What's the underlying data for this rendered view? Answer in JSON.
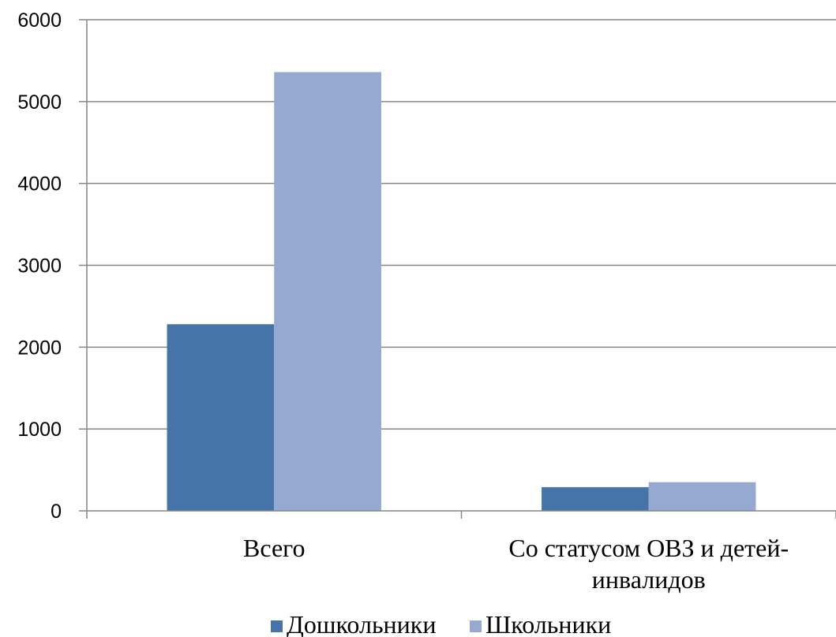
{
  "chart_data": {
    "type": "bar",
    "title": "",
    "xlabel": "",
    "ylabel": "",
    "categories": [
      [
        "Всего"
      ],
      [
        "Со статусом ОВЗ и детей-",
        "инвалидов"
      ]
    ],
    "series": [
      {
        "name": "Дошкольники",
        "color": "#4674A8",
        "values": [
          2280,
          290
        ]
      },
      {
        "name": "Школьники",
        "color": "#95A9D1",
        "values": [
          5360,
          350
        ]
      }
    ],
    "ylim": [
      0,
      6000
    ],
    "yticks": [
      0,
      1000,
      2000,
      3000,
      4000,
      5000,
      6000
    ],
    "grid": true,
    "legend": "bottom"
  }
}
